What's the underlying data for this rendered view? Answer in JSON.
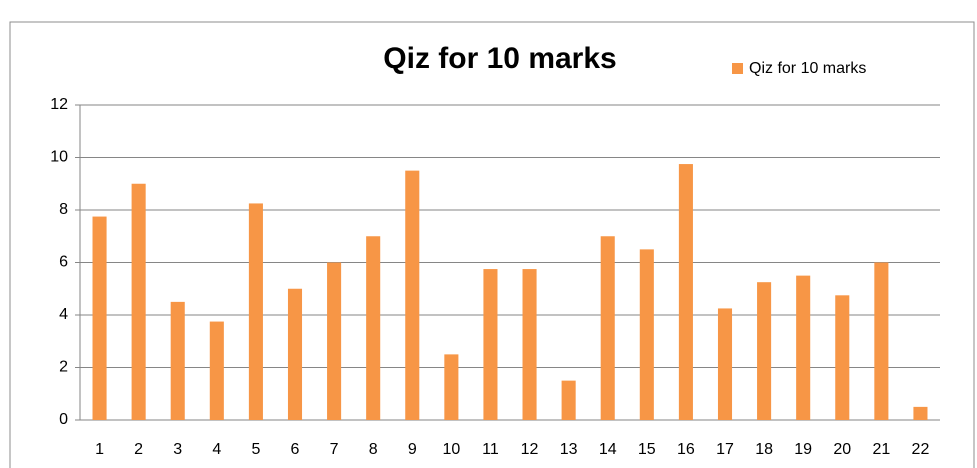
{
  "chart_data": {
    "type": "bar",
    "title": "Qiz for 10 marks",
    "categories": [
      1,
      2,
      3,
      4,
      5,
      6,
      7,
      8,
      9,
      10,
      11,
      12,
      13,
      14,
      15,
      16,
      17,
      18,
      19,
      20,
      21,
      22
    ],
    "series": [
      {
        "name": "Qiz for 10 marks",
        "color": "#f79646",
        "values": [
          7.75,
          9,
          4.5,
          3.75,
          8.25,
          5,
          6,
          7,
          9.5,
          2.5,
          5.75,
          5.75,
          1.5,
          7,
          6.5,
          9.75,
          4.25,
          5.25,
          5.5,
          4.75,
          6,
          0.5
        ]
      }
    ],
    "ylim": [
      0,
      12
    ],
    "yticks": [
      0,
      2,
      4,
      6,
      8,
      10,
      12
    ],
    "grid": true,
    "legend": "top-right"
  }
}
